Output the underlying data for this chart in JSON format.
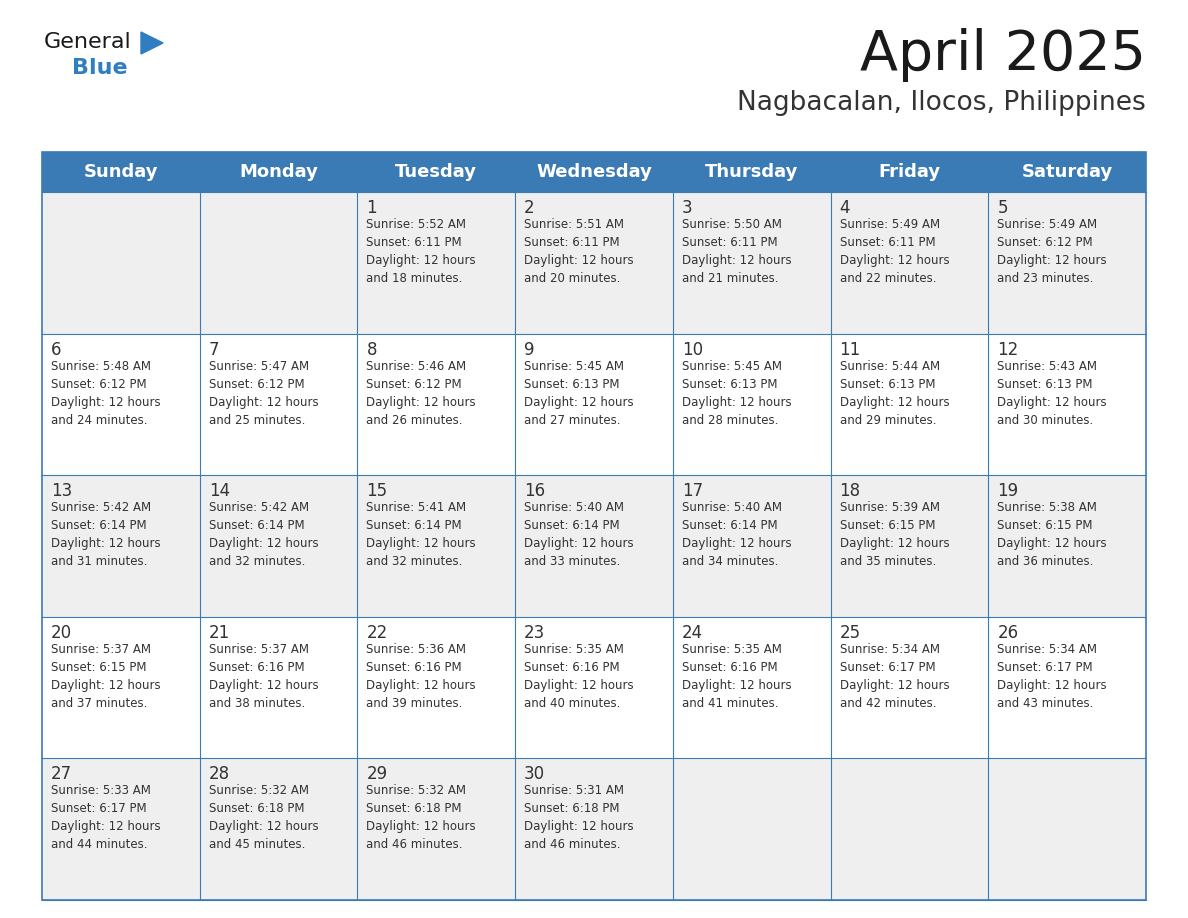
{
  "title": "April 2025",
  "subtitle": "Nagbacalan, Ilocos, Philippines",
  "days_of_week": [
    "Sunday",
    "Monday",
    "Tuesday",
    "Wednesday",
    "Thursday",
    "Friday",
    "Saturday"
  ],
  "header_bg": "#3A7AB5",
  "header_text": "#FFFFFF",
  "cell_bg_odd": "#EFEFEF",
  "cell_bg_even": "#FFFFFF",
  "cell_text": "#333333",
  "border_color": "#3A7AB5",
  "title_color": "#1a1a1a",
  "subtitle_color": "#333333",
  "logo_general_color": "#1a1a1a",
  "logo_blue_color": "#2E7EC1",
  "calendar_data": [
    [
      "",
      "",
      "1\nSunrise: 5:52 AM\nSunset: 6:11 PM\nDaylight: 12 hours\nand 18 minutes.",
      "2\nSunrise: 5:51 AM\nSunset: 6:11 PM\nDaylight: 12 hours\nand 20 minutes.",
      "3\nSunrise: 5:50 AM\nSunset: 6:11 PM\nDaylight: 12 hours\nand 21 minutes.",
      "4\nSunrise: 5:49 AM\nSunset: 6:11 PM\nDaylight: 12 hours\nand 22 minutes.",
      "5\nSunrise: 5:49 AM\nSunset: 6:12 PM\nDaylight: 12 hours\nand 23 minutes."
    ],
    [
      "6\nSunrise: 5:48 AM\nSunset: 6:12 PM\nDaylight: 12 hours\nand 24 minutes.",
      "7\nSunrise: 5:47 AM\nSunset: 6:12 PM\nDaylight: 12 hours\nand 25 minutes.",
      "8\nSunrise: 5:46 AM\nSunset: 6:12 PM\nDaylight: 12 hours\nand 26 minutes.",
      "9\nSunrise: 5:45 AM\nSunset: 6:13 PM\nDaylight: 12 hours\nand 27 minutes.",
      "10\nSunrise: 5:45 AM\nSunset: 6:13 PM\nDaylight: 12 hours\nand 28 minutes.",
      "11\nSunrise: 5:44 AM\nSunset: 6:13 PM\nDaylight: 12 hours\nand 29 minutes.",
      "12\nSunrise: 5:43 AM\nSunset: 6:13 PM\nDaylight: 12 hours\nand 30 minutes."
    ],
    [
      "13\nSunrise: 5:42 AM\nSunset: 6:14 PM\nDaylight: 12 hours\nand 31 minutes.",
      "14\nSunrise: 5:42 AM\nSunset: 6:14 PM\nDaylight: 12 hours\nand 32 minutes.",
      "15\nSunrise: 5:41 AM\nSunset: 6:14 PM\nDaylight: 12 hours\nand 32 minutes.",
      "16\nSunrise: 5:40 AM\nSunset: 6:14 PM\nDaylight: 12 hours\nand 33 minutes.",
      "17\nSunrise: 5:40 AM\nSunset: 6:14 PM\nDaylight: 12 hours\nand 34 minutes.",
      "18\nSunrise: 5:39 AM\nSunset: 6:15 PM\nDaylight: 12 hours\nand 35 minutes.",
      "19\nSunrise: 5:38 AM\nSunset: 6:15 PM\nDaylight: 12 hours\nand 36 minutes."
    ],
    [
      "20\nSunrise: 5:37 AM\nSunset: 6:15 PM\nDaylight: 12 hours\nand 37 minutes.",
      "21\nSunrise: 5:37 AM\nSunset: 6:16 PM\nDaylight: 12 hours\nand 38 minutes.",
      "22\nSunrise: 5:36 AM\nSunset: 6:16 PM\nDaylight: 12 hours\nand 39 minutes.",
      "23\nSunrise: 5:35 AM\nSunset: 6:16 PM\nDaylight: 12 hours\nand 40 minutes.",
      "24\nSunrise: 5:35 AM\nSunset: 6:16 PM\nDaylight: 12 hours\nand 41 minutes.",
      "25\nSunrise: 5:34 AM\nSunset: 6:17 PM\nDaylight: 12 hours\nand 42 minutes.",
      "26\nSunrise: 5:34 AM\nSunset: 6:17 PM\nDaylight: 12 hours\nand 43 minutes."
    ],
    [
      "27\nSunrise: 5:33 AM\nSunset: 6:17 PM\nDaylight: 12 hours\nand 44 minutes.",
      "28\nSunrise: 5:32 AM\nSunset: 6:18 PM\nDaylight: 12 hours\nand 45 minutes.",
      "29\nSunrise: 5:32 AM\nSunset: 6:18 PM\nDaylight: 12 hours\nand 46 minutes.",
      "30\nSunrise: 5:31 AM\nSunset: 6:18 PM\nDaylight: 12 hours\nand 46 minutes.",
      "",
      "",
      ""
    ]
  ],
  "fig_w": 11.88,
  "fig_h": 9.18,
  "dpi": 100
}
